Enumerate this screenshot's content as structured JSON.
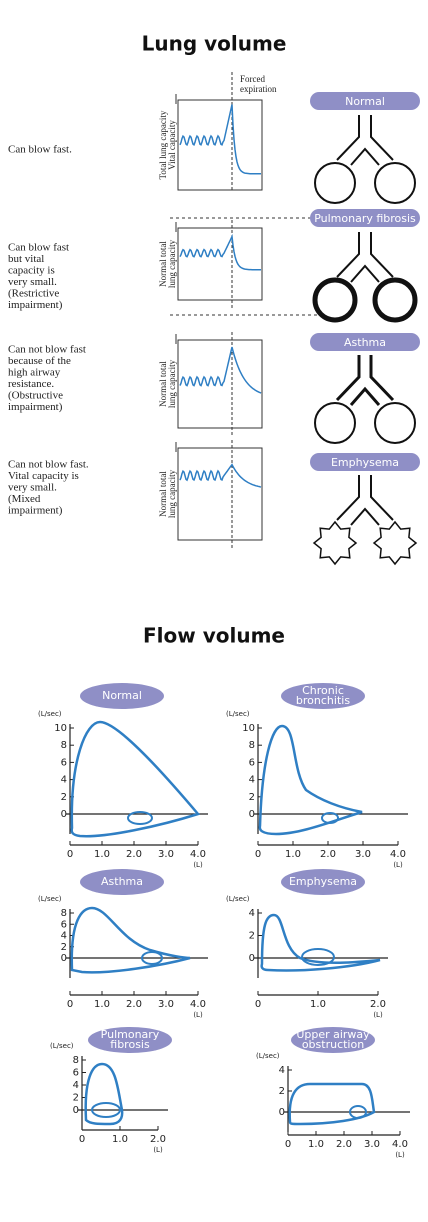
{
  "lung_volume": {
    "title": "Lung volume",
    "forced_label": [
      "Forced",
      "expiration"
    ],
    "rows": [
      {
        "description": [
          "Can blow fast."
        ],
        "axis_labels": [
          "Total lung capacity",
          "Vital capacity"
        ],
        "condition": "Normal"
      },
      {
        "description": [
          "Can blow fast",
          "but vital",
          "capacity is",
          "very small.",
          "(Restrictive",
          "impairment)"
        ],
        "axis_labels": [
          "Normal total",
          "lung capacity"
        ],
        "condition": "Pulmonary fibrosis"
      },
      {
        "description": [
          "Can not blow fast",
          "because of the",
          "high airway",
          "resistance.",
          "(Obstructive",
          "impairment)"
        ],
        "axis_labels": [
          "Normal total",
          "lung capacity"
        ],
        "condition": "Asthma"
      },
      {
        "description": [
          "Can not blow fast.",
          "Vital capacity is",
          "very small.",
          "(Mixed",
          "impairment)"
        ],
        "axis_labels": [
          "Normal total",
          "lung capacity"
        ],
        "condition": "Emphysema"
      }
    ]
  },
  "flow_volume": {
    "title": "Flow volume",
    "y_unit": "(L/sec)",
    "x_unit": "(L)",
    "plots": [
      {
        "name": [
          "Normal"
        ],
        "yticks": [
          "10",
          "8",
          "6",
          "4",
          "2",
          "0"
        ],
        "xticks": [
          "0",
          "1.0",
          "2.0",
          "3.0",
          "4.0"
        ]
      },
      {
        "name": [
          "Chronic",
          "bronchitis"
        ],
        "yticks": [
          "10",
          "8",
          "6",
          "4",
          "2",
          "0"
        ],
        "xticks": [
          "0",
          "1.0",
          "2.0",
          "3.0",
          "4.0"
        ]
      },
      {
        "name": [
          "Asthma"
        ],
        "yticks": [
          "8",
          "6",
          "4",
          "2",
          "0"
        ],
        "xticks": [
          "0",
          "1.0",
          "2.0",
          "3.0",
          "4.0"
        ]
      },
      {
        "name": [
          "Emphysema"
        ],
        "yticks": [
          "4",
          "2",
          "0"
        ],
        "xticks": [
          "0",
          "1.0",
          "2.0"
        ]
      },
      {
        "name": [
          "Pulmonary",
          "fibrosis"
        ],
        "yticks": [
          "8",
          "6",
          "4",
          "2",
          "0"
        ],
        "xticks": [
          "0",
          "1.0",
          "2.0"
        ]
      },
      {
        "name": [
          "Upper airway",
          "obstruction"
        ],
        "yticks": [
          "4",
          "2",
          "0"
        ],
        "xticks": [
          "0",
          "1.0",
          "2.0",
          "3.0",
          "4.0"
        ]
      }
    ]
  }
}
